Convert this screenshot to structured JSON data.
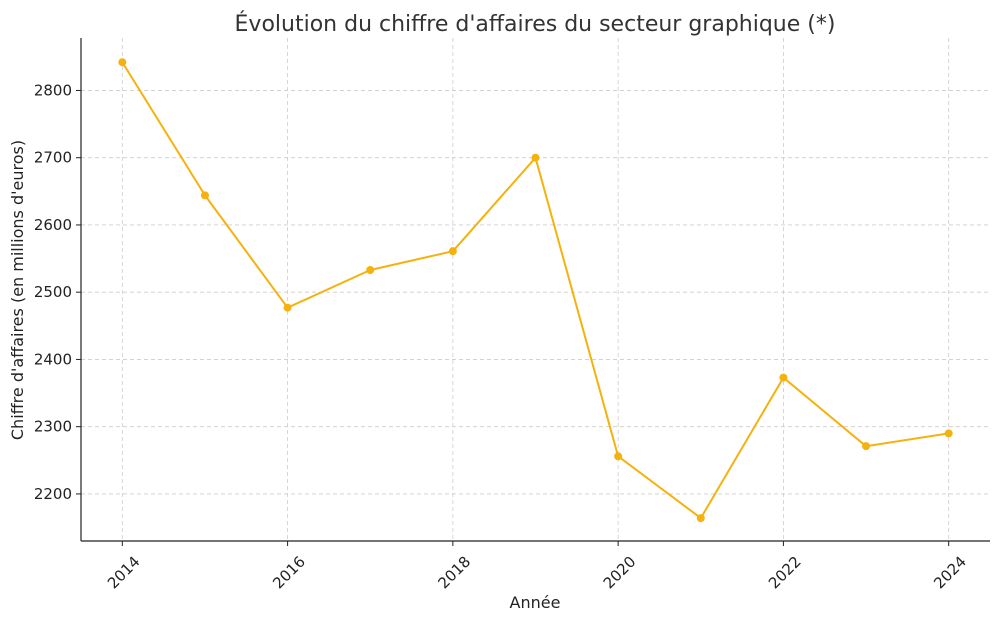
{
  "chart_data": {
    "type": "line",
    "title": "Évolution du chiffre d'affaires du secteur graphique (*)",
    "xlabel": "Année",
    "ylabel": "Chiffre d'affaires (en millions d'euros)",
    "x": [
      2014,
      2015,
      2016,
      2017,
      2018,
      2019,
      2020,
      2021,
      2022,
      2023,
      2024
    ],
    "series": [
      {
        "values": [
          2842,
          2644,
          2477,
          2533,
          2561,
          2700,
          2256,
          2164,
          2373,
          2271,
          2290
        ],
        "color": "#f5b20f"
      }
    ],
    "xticks": [
      "2014",
      "2016",
      "2018",
      "2020",
      "2022",
      "2024"
    ],
    "yticks": [
      "2200",
      "2300",
      "2400",
      "2500",
      "2600",
      "2700",
      "2800"
    ],
    "xlim": [
      2013.5,
      2024.5
    ],
    "ylim": [
      2130,
      2878
    ],
    "grid": true,
    "marker": "circle"
  }
}
